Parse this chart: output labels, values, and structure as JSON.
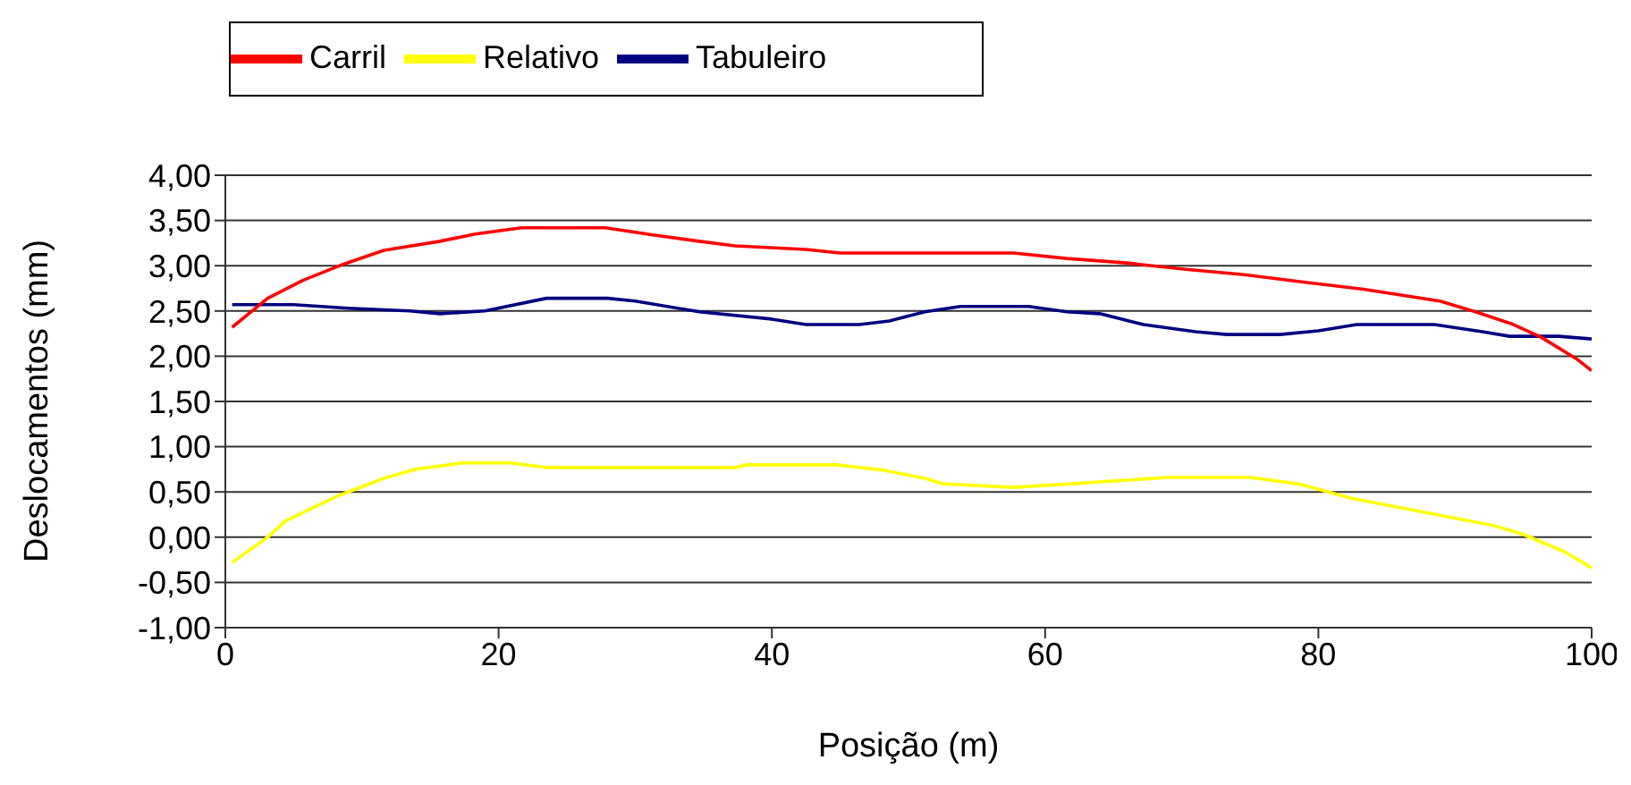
{
  "chart_data": {
    "type": "line",
    "xlabel": "Posição (m)",
    "ylabel": "Deslocamentos (mm)",
    "xlim": [
      0,
      100
    ],
    "xticks": [
      0,
      20,
      40,
      60,
      80,
      100
    ],
    "ylim": [
      -1,
      4
    ],
    "yticks": [
      {
        "value": -1,
        "label": "-1,00"
      },
      {
        "value": -0.5,
        "label": "-0,50"
      },
      {
        "value": 0,
        "label": "0,00"
      },
      {
        "value": 0.5,
        "label": "0,50"
      },
      {
        "value": 1,
        "label": "1,00"
      },
      {
        "value": 1.5,
        "label": "1,50"
      },
      {
        "value": 2,
        "label": "2,00"
      },
      {
        "value": 2.5,
        "label": "2,50"
      },
      {
        "value": 3,
        "label": "3,00"
      },
      {
        "value": 3.5,
        "label": "3,50"
      },
      {
        "value": 4,
        "label": "4,00"
      }
    ],
    "grid": "y",
    "legend": "top left",
    "marker": "none",
    "line_style": "solid",
    "series": [
      {
        "name": "Tabuleiro",
        "color": "#000080",
        "x": [
          0.5,
          5,
          9,
          13.5,
          15.7,
          19,
          23.5,
          28,
          30,
          34.7,
          40,
          42.5,
          46.4,
          48.6,
          51.2,
          53.8,
          58.8,
          61.6,
          64,
          67.2,
          71,
          73.3,
          77.2,
          80,
          82.8,
          88.5,
          92,
          94,
          97.6,
          100
        ],
        "values": [
          2.57,
          2.57,
          2.53,
          2.5,
          2.47,
          2.5,
          2.64,
          2.64,
          2.61,
          2.49,
          2.41,
          2.35,
          2.35,
          2.39,
          2.49,
          2.55,
          2.55,
          2.49,
          2.47,
          2.35,
          2.27,
          2.24,
          2.24,
          2.28,
          2.35,
          2.35,
          2.27,
          2.22,
          2.22,
          2.19
        ]
      },
      {
        "name": "Carril",
        "color": "#ff0000",
        "x": [
          0.5,
          3.1,
          5.7,
          8.7,
          11.6,
          15.7,
          18.3,
          21.7,
          27.8,
          31.3,
          34.7,
          37.3,
          42.5,
          45,
          57.7,
          61.6,
          66,
          70.3,
          74.6,
          78.9,
          83.3,
          88.9,
          91.5,
          94.1,
          96.3,
          98.9,
          100
        ],
        "values": [
          2.32,
          2.64,
          2.84,
          3.02,
          3.17,
          3.27,
          3.35,
          3.42,
          3.42,
          3.34,
          3.27,
          3.22,
          3.18,
          3.14,
          3.14,
          3.08,
          3.03,
          2.96,
          2.9,
          2.82,
          2.74,
          2.61,
          2.49,
          2.36,
          2.21,
          1.97,
          1.84
        ]
      },
      {
        "name": "Relativo",
        "color": "#ffff00",
        "x": [
          0.5,
          3.1,
          4.4,
          8.3,
          11.8,
          13.9,
          17.4,
          20.9,
          23.5,
          37.3,
          38.2,
          44.7,
          48.2,
          51.2,
          52.5,
          57.7,
          62.9,
          69,
          75,
          78.5,
          82.4,
          87.6,
          92.8,
          95,
          98,
          100
        ],
        "values": [
          -0.28,
          0,
          0.18,
          0.46,
          0.66,
          0.75,
          0.82,
          0.82,
          0.77,
          0.77,
          0.8,
          0.8,
          0.74,
          0.65,
          0.59,
          0.55,
          0.6,
          0.66,
          0.66,
          0.59,
          0.43,
          0.28,
          0.13,
          0.03,
          -0.16,
          -0.34
        ]
      }
    ]
  }
}
